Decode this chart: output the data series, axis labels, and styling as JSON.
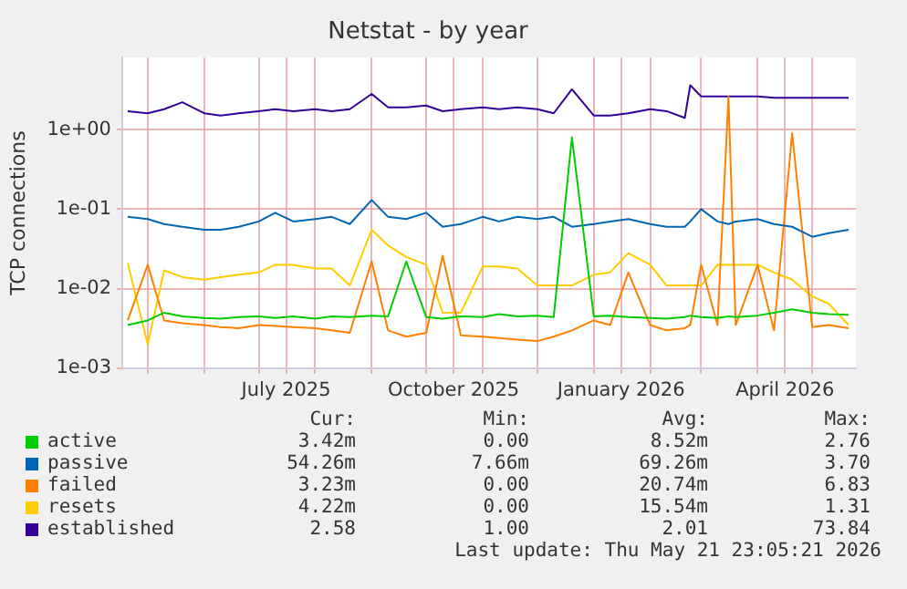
{
  "chart_data": {
    "type": "line",
    "title": "Netstat - by year",
    "ylabel": "TCP connections",
    "log": "y",
    "grid": true,
    "legend": "bottom",
    "marker": "none",
    "line_style": "solid",
    "xlim": [
      "2025-04-17",
      "2026-05-25"
    ],
    "xticks": [
      {
        "value": "2025-05-01",
        "label": null
      },
      {
        "value": "2025-06-01",
        "label": null
      },
      {
        "value": "2025-07-01",
        "label": null
      },
      {
        "value": "2025-07-16",
        "label": "July 2025"
      },
      {
        "value": "2025-08-01",
        "label": null
      },
      {
        "value": "2025-09-01",
        "label": null
      },
      {
        "value": "2025-10-01",
        "label": null
      },
      {
        "value": "2025-10-16",
        "label": "October 2025"
      },
      {
        "value": "2025-11-01",
        "label": null
      },
      {
        "value": "2025-12-01",
        "label": null
      },
      {
        "value": "2026-01-01",
        "label": null
      },
      {
        "value": "2026-01-16",
        "label": "January 2026"
      },
      {
        "value": "2026-02-01",
        "label": null
      },
      {
        "value": "2026-03-01",
        "label": null
      },
      {
        "value": "2026-04-01",
        "label": null
      },
      {
        "value": "2026-04-16",
        "label": "April 2026"
      },
      {
        "value": "2026-05-01",
        "label": null
      }
    ],
    "ylim": [
      0.001,
      8
    ],
    "yticks": [
      {
        "value": 0.001,
        "label": "1e-03"
      },
      {
        "value": 0.01,
        "label": "1e-02"
      },
      {
        "value": 0.1,
        "label": "1e-01"
      },
      {
        "value": 1,
        "label": "1e+00"
      }
    ],
    "x": [
      "2025-04-20",
      "2025-05-01",
      "2025-05-10",
      "2025-05-20",
      "2025-06-01",
      "2025-06-10",
      "2025-06-20",
      "2025-07-01",
      "2025-07-10",
      "2025-07-20",
      "2025-08-01",
      "2025-08-10",
      "2025-08-20",
      "2025-09-01",
      "2025-09-10",
      "2025-09-20",
      "2025-10-01",
      "2025-10-10",
      "2025-10-20",
      "2025-11-01",
      "2025-11-10",
      "2025-11-20",
      "2025-12-01",
      "2025-12-10",
      "2025-12-20",
      "2026-01-01",
      "2026-01-10",
      "2026-01-20",
      "2026-02-01",
      "2026-02-10",
      "2026-02-20",
      "2026-02-23",
      "2026-03-01",
      "2026-03-10",
      "2026-03-16",
      "2026-03-20",
      "2026-04-01",
      "2026-04-10",
      "2026-04-20",
      "2026-05-01",
      "2026-05-10",
      "2026-05-21"
    ],
    "series": [
      {
        "name": "active",
        "color": "#00cc00",
        "values": [
          0.0035,
          0.004,
          0.005,
          0.0045,
          0.0043,
          0.0042,
          0.0044,
          0.0045,
          0.0043,
          0.0045,
          0.0042,
          0.0045,
          0.0044,
          0.0046,
          0.0045,
          0.022,
          0.0044,
          0.0042,
          0.0045,
          0.0044,
          0.0048,
          0.0045,
          0.0046,
          0.0044,
          0.8,
          0.0045,
          0.0046,
          0.0044,
          0.0043,
          0.0042,
          0.0044,
          0.0046,
          0.0044,
          0.0043,
          0.0045,
          0.0044,
          0.0046,
          0.005,
          0.0055,
          0.005,
          0.0048,
          0.0047
        ]
      },
      {
        "name": "passive",
        "color": "#0066b3",
        "values": [
          0.08,
          0.075,
          0.065,
          0.06,
          0.055,
          0.055,
          0.06,
          0.07,
          0.09,
          0.07,
          0.075,
          0.08,
          0.065,
          0.13,
          0.08,
          0.075,
          0.09,
          0.06,
          0.065,
          0.08,
          0.07,
          0.08,
          0.075,
          0.08,
          0.06,
          0.065,
          0.07,
          0.075,
          0.065,
          0.06,
          0.06,
          0.07,
          0.1,
          0.07,
          0.065,
          0.07,
          0.075,
          0.065,
          0.06,
          0.045,
          0.05,
          0.055
        ]
      },
      {
        "name": "failed",
        "color": "#ff8000",
        "values": [
          0.004,
          0.02,
          0.004,
          0.0037,
          0.0035,
          0.0033,
          0.0032,
          0.0035,
          0.0034,
          0.0033,
          0.0032,
          0.003,
          0.0028,
          0.022,
          0.003,
          0.0025,
          0.0028,
          0.026,
          0.0026,
          0.0025,
          0.0024,
          0.0023,
          0.0022,
          0.0025,
          0.003,
          0.004,
          0.0035,
          0.016,
          0.0035,
          0.003,
          0.0032,
          0.0035,
          0.02,
          0.0035,
          2.6,
          0.0035,
          0.02,
          0.003,
          0.9,
          0.0033,
          0.0035,
          0.0032
        ]
      },
      {
        "name": "resets",
        "color": "#ffcc00",
        "values": [
          0.021,
          0.002,
          0.017,
          0.014,
          0.013,
          0.014,
          0.015,
          0.016,
          0.02,
          0.02,
          0.018,
          0.018,
          0.011,
          0.055,
          0.035,
          0.025,
          0.02,
          0.005,
          0.005,
          0.019,
          0.019,
          0.018,
          0.011,
          0.011,
          0.011,
          0.015,
          0.016,
          0.028,
          0.02,
          0.011,
          0.011,
          0.011,
          0.011,
          0.02,
          0.02,
          0.02,
          0.02,
          0.016,
          0.013,
          0.008,
          0.0065,
          0.0035
        ]
      },
      {
        "name": "established",
        "color": "#330099",
        "values": [
          1.7,
          1.6,
          1.8,
          2.2,
          1.6,
          1.5,
          1.6,
          1.7,
          1.8,
          1.7,
          1.8,
          1.7,
          1.8,
          2.8,
          1.9,
          1.9,
          2.0,
          1.7,
          1.8,
          1.9,
          1.8,
          1.9,
          1.8,
          1.6,
          3.2,
          1.5,
          1.5,
          1.6,
          1.8,
          1.7,
          1.4,
          3.6,
          2.6,
          2.6,
          2.6,
          2.6,
          2.6,
          2.5,
          2.5,
          2.5,
          2.5,
          2.5
        ]
      }
    ],
    "annotations": [
      "Cur:",
      "Min:",
      "Avg:",
      "Max:",
      "3.42m",
      "0.00",
      "8.52m",
      "2.76",
      "54.26m",
      "7.66m",
      "69.26m",
      "3.70",
      "3.23m",
      "0.00",
      "20.74m",
      "6.83",
      "4.22m",
      "0.00",
      "15.54m",
      "1.31",
      "2.58",
      "1.00",
      "2.01",
      "73.84",
      "Last update: Thu May 21 23:05:21 2026"
    ]
  }
}
